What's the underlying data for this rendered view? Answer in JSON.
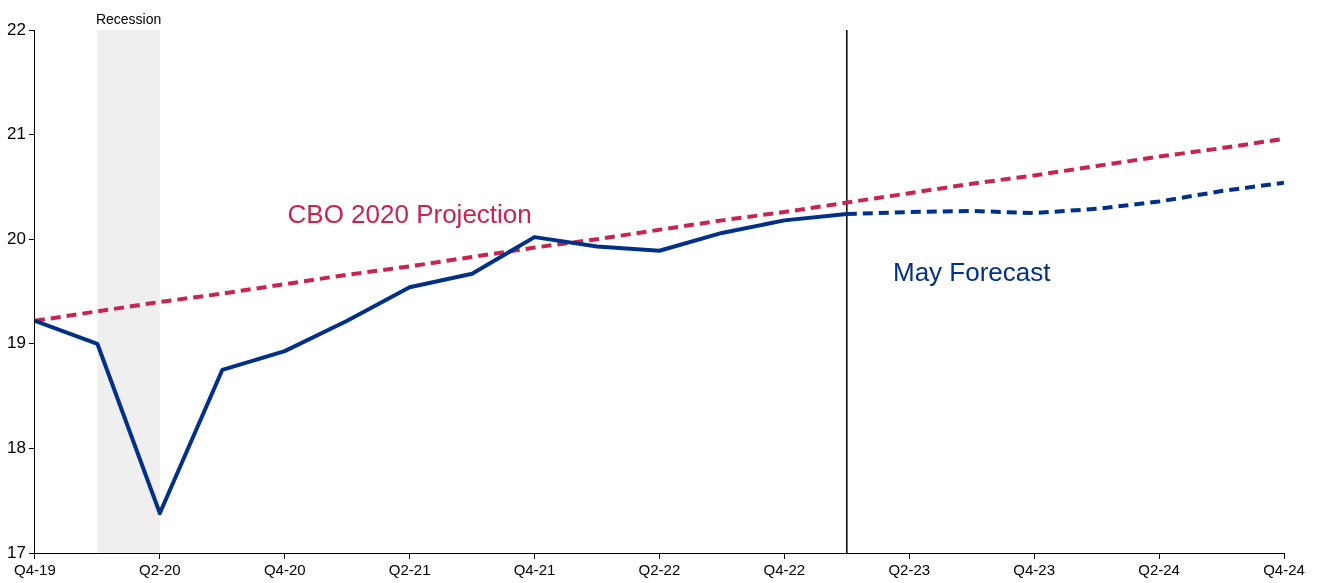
{
  "chart_data": {
    "type": "line",
    "xlim": [
      "2019-10",
      "2024-10"
    ],
    "xticks": [
      {
        "value": "2019-10",
        "label": "Q4-19"
      },
      {
        "value": "2020-04",
        "label": "Q2-20"
      },
      {
        "value": "2020-10",
        "label": "Q4-20"
      },
      {
        "value": "2021-04",
        "label": "Q2-21"
      },
      {
        "value": "2021-10",
        "label": "Q4-21"
      },
      {
        "value": "2022-04",
        "label": "Q2-22"
      },
      {
        "value": "2022-10",
        "label": "Q4-22"
      },
      {
        "value": "2023-04",
        "label": "Q2-23"
      },
      {
        "value": "2023-10",
        "label": "Q4-23"
      },
      {
        "value": "2024-04",
        "label": "Q2-24"
      },
      {
        "value": "2024-10",
        "label": "Q4-24"
      }
    ],
    "ylim": [
      17,
      22
    ],
    "yticks": [
      17,
      18,
      19,
      20,
      21,
      22
    ],
    "grid": false,
    "legend": false,
    "marker": "none",
    "bands": [
      {
        "axis": "x",
        "from": "2020-01",
        "to": "2020-04",
        "label": "Recession",
        "color": "#efefef"
      }
    ],
    "ref_lines": [
      {
        "axis": "x",
        "value": "2023-01",
        "color": "#000000",
        "line_style": "solid"
      }
    ],
    "series": [
      {
        "color": "#003087",
        "line_style": "solid",
        "x": [
          "2019-10",
          "2020-01",
          "2020-04",
          "2020-07",
          "2020-10",
          "2021-01",
          "2021-04",
          "2021-07",
          "2021-10",
          "2022-01",
          "2022-04",
          "2022-07",
          "2022-10",
          "2023-01"
        ],
        "values": [
          19.22,
          19.0,
          17.38,
          18.75,
          18.93,
          19.22,
          19.54,
          19.67,
          20.02,
          19.93,
          19.89,
          20.06,
          20.18,
          20.24
        ]
      },
      {
        "name": "May Forecast",
        "color": "#003087",
        "line_style": "dashed",
        "x": [
          "2023-01",
          "2023-04",
          "2023-07",
          "2023-10",
          "2024-01",
          "2024-04",
          "2024-07",
          "2024-10"
        ],
        "values": [
          20.24,
          20.26,
          20.27,
          20.25,
          20.29,
          20.36,
          20.46,
          20.54
        ]
      },
      {
        "name": "CBO 2020 Projection",
        "color": "#c8244f",
        "line_style": "dashed",
        "x": [
          "2019-10",
          "2020-01",
          "2020-04",
          "2020-07",
          "2020-10",
          "2021-01",
          "2021-04",
          "2021-07",
          "2021-10",
          "2022-01",
          "2022-04",
          "2022-07",
          "2022-10",
          "2023-01",
          "2023-04",
          "2023-07",
          "2023-10",
          "2024-01",
          "2024-04",
          "2024-07",
          "2024-10"
        ],
        "values": [
          19.22,
          19.31,
          19.4,
          19.48,
          19.57,
          19.66,
          19.74,
          19.83,
          19.92,
          20.0,
          20.09,
          20.18,
          20.26,
          20.35,
          20.44,
          20.53,
          20.61,
          20.7,
          20.79,
          20.87,
          20.96
        ]
      }
    ]
  }
}
